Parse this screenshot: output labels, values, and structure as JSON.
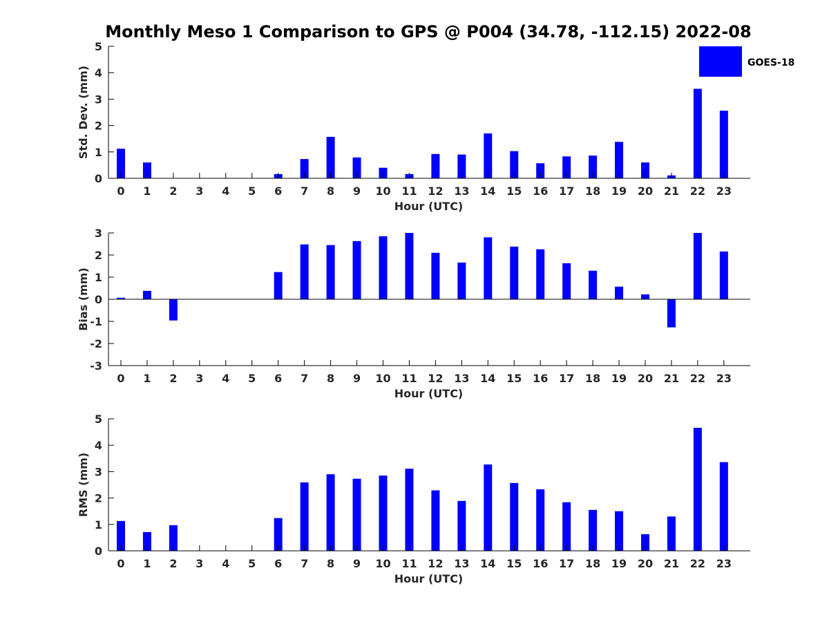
{
  "title": "Monthly Meso 1 Comparison to GPS @ P004 (34.78, -112.15) 2022-08",
  "colors": {
    "bar": "#0000ff",
    "axis": "#000000",
    "text": "#262626"
  },
  "legend": {
    "label": "GOES-18",
    "placement": "top-right"
  },
  "chart_data": [
    {
      "type": "bar",
      "categories": [
        "0",
        "1",
        "2",
        "3",
        "4",
        "5",
        "6",
        "7",
        "8",
        "9",
        "10",
        "11",
        "12",
        "13",
        "14",
        "15",
        "16",
        "17",
        "18",
        "19",
        "20",
        "21",
        "22",
        "23"
      ],
      "series": [
        {
          "name": "GOES-18",
          "values": [
            1.12,
            0.6,
            0,
            0,
            0,
            0,
            0.16,
            0.73,
            1.57,
            0.79,
            0.4,
            0.16,
            0.92,
            0.9,
            1.7,
            1.03,
            0.57,
            0.83,
            0.86,
            1.38,
            0.6,
            0.11,
            3.39,
            2.56
          ]
        }
      ],
      "xlabel": "Hour (UTC)",
      "ylabel": "Std. Dev. (mm)",
      "ylim": [
        0,
        5
      ],
      "yticks": [
        "0",
        "1",
        "2",
        "3",
        "4",
        "5"
      ]
    },
    {
      "type": "bar",
      "categories": [
        "0",
        "1",
        "2",
        "3",
        "4",
        "5",
        "6",
        "7",
        "8",
        "9",
        "10",
        "11",
        "12",
        "13",
        "14",
        "15",
        "16",
        "17",
        "18",
        "19",
        "20",
        "21",
        "22",
        "23"
      ],
      "series": [
        {
          "name": "GOES-18",
          "values": [
            0.07,
            0.38,
            -0.96,
            0,
            0,
            0,
            1.23,
            2.48,
            2.45,
            2.63,
            2.85,
            3.0,
            2.1,
            1.66,
            2.8,
            2.38,
            2.26,
            1.63,
            1.29,
            0.57,
            0.22,
            -1.27,
            3.0,
            2.16
          ]
        }
      ],
      "xlabel": "Hour (UTC)",
      "ylabel": "Bias (mm)",
      "ylim": [
        -3,
        3
      ],
      "yticks": [
        "-3",
        "-2",
        "-1",
        "0",
        "1",
        "2",
        "3"
      ]
    },
    {
      "type": "bar",
      "categories": [
        "0",
        "1",
        "2",
        "3",
        "4",
        "5",
        "6",
        "7",
        "8",
        "9",
        "10",
        "11",
        "12",
        "13",
        "14",
        "15",
        "16",
        "17",
        "18",
        "19",
        "20",
        "21",
        "22",
        "23"
      ],
      "series": [
        {
          "name": "GOES-18",
          "values": [
            1.13,
            0.71,
            0.97,
            0,
            0,
            0,
            1.24,
            2.59,
            2.9,
            2.73,
            2.85,
            3.11,
            2.29,
            1.89,
            3.27,
            2.57,
            2.33,
            1.84,
            1.55,
            1.5,
            0.63,
            1.3,
            4.66,
            3.36
          ]
        }
      ],
      "xlabel": "Hour (UTC)",
      "ylabel": "RMS (mm)",
      "ylim": [
        0,
        5
      ],
      "yticks": [
        "0",
        "1",
        "2",
        "3",
        "4",
        "5"
      ]
    }
  ]
}
